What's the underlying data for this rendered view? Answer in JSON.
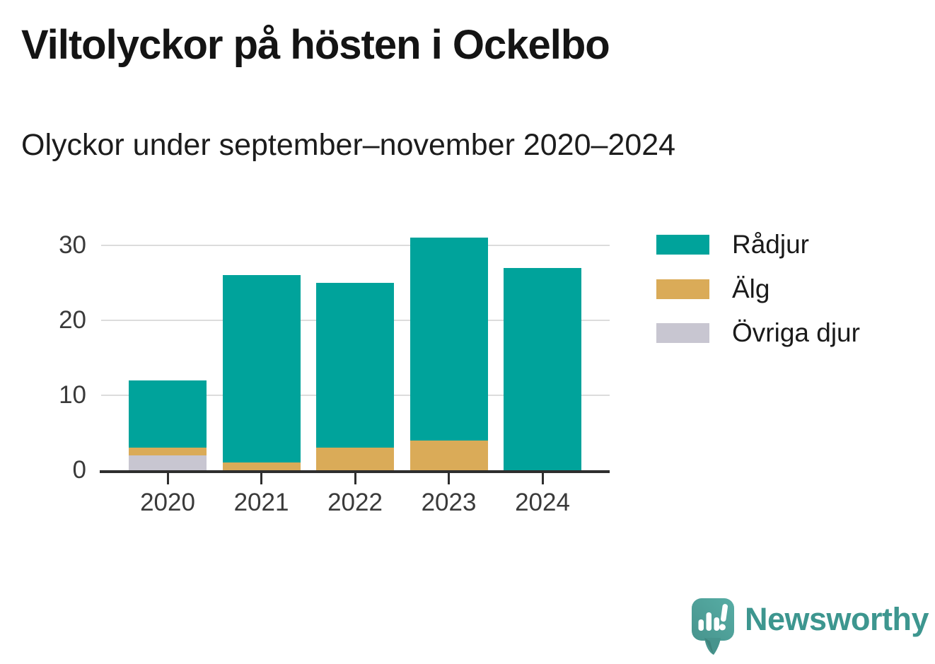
{
  "header": {
    "title": "Viltolyckor på hösten i Ockelbo",
    "subtitle": "Olyckor under september–november 2020–2024"
  },
  "chart_data": {
    "type": "bar",
    "stacked": true,
    "title": "Viltolyckor på hösten i Ockelbo",
    "subtitle": "Olyckor under september–november 2020–2024",
    "categories": [
      "2020",
      "2021",
      "2022",
      "2023",
      "2024"
    ],
    "series": [
      {
        "name": "Rådjur",
        "color": "#00a39b",
        "values": [
          9,
          25,
          22,
          27,
          27
        ]
      },
      {
        "name": "Älg",
        "color": "#daab58",
        "values": [
          1,
          1,
          3,
          4,
          0
        ]
      },
      {
        "name": "Övriga djur",
        "color": "#c8c6d1",
        "values": [
          2,
          0,
          0,
          0,
          0
        ]
      }
    ],
    "stack_order_bottom_to_top": [
      "Övriga djur",
      "Älg",
      "Rådjur"
    ],
    "stack_totals": [
      12,
      26,
      25,
      31,
      27
    ],
    "yticks": [
      0,
      10,
      20,
      30
    ],
    "ylim": [
      0,
      33
    ],
    "xlabel": "",
    "ylabel": "",
    "grid": "horizontal",
    "legend_position": "right"
  },
  "footer": {
    "brand": "Newsworthy"
  },
  "colors": {
    "radjur": "#00a39b",
    "alg": "#daab58",
    "ovriga_djur": "#c8c6d1",
    "axis": "#2e2e2e",
    "gridline": "#dcdcdc",
    "tick_label": "#3a3a3a",
    "brand_teal": "#3d968f"
  }
}
